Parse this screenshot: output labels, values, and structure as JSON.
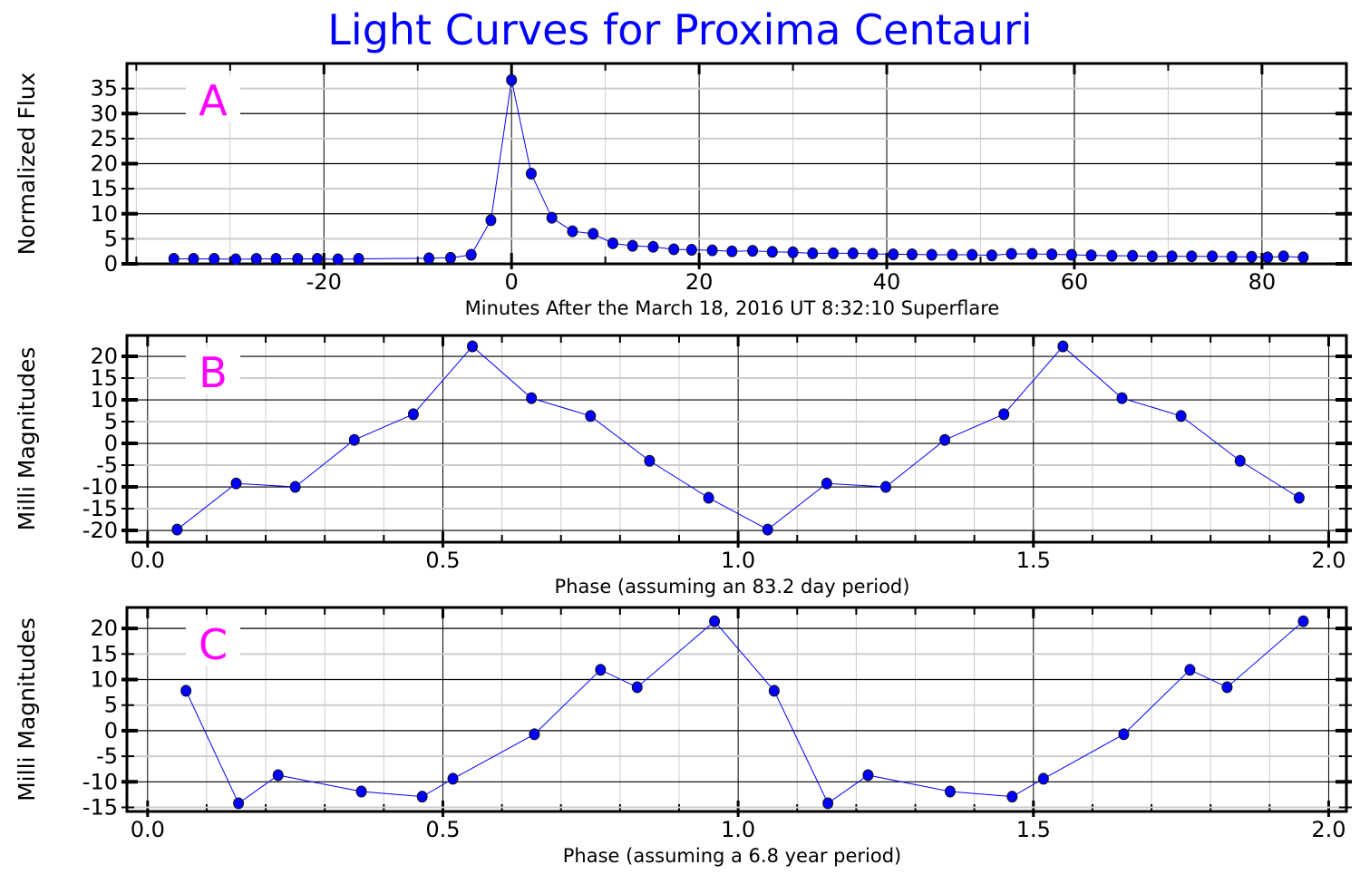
{
  "title": "Light Curves for Proxima Centauri",
  "colors": {
    "title": "#0000ff",
    "series": "#0000ff",
    "panel_label": "#ff00ff",
    "major_grid": "#000000",
    "minor_grid": "#cccccc"
  },
  "chart_data": [
    {
      "type": "line",
      "panel_label": "A",
      "xlabel": "Minutes After the March 18, 2016 UT 8:32:10 Superflare",
      "ylabel": "Normalized Flux",
      "xlim": [
        -41,
        89
      ],
      "ylim": [
        0,
        40
      ],
      "xticks": [
        -20,
        0,
        20,
        40,
        60,
        80
      ],
      "xminor": 10,
      "yticks": [
        0,
        5,
        10,
        15,
        20,
        25,
        30,
        35
      ],
      "ymajor": 10,
      "grid": true,
      "x": [
        -36.0,
        -33.9,
        -31.7,
        -29.4,
        -27.2,
        -25.1,
        -22.8,
        -20.7,
        -18.5,
        -16.3,
        -8.8,
        -6.5,
        -4.3,
        -2.2,
        0,
        2.1,
        4.3,
        6.5,
        8.7,
        10.8,
        12.9,
        15.1,
        17.3,
        19.2,
        21.4,
        23.5,
        25.7,
        27.8,
        30.0,
        32.1,
        34.3,
        36.4,
        38.5,
        40.7,
        42.7,
        44.8,
        47.0,
        49.1,
        51.2,
        53.3,
        55.5,
        57.6,
        59.7,
        61.8,
        64.0,
        66.2,
        68.3,
        70.4,
        72.5,
        74.7,
        76.8,
        78.9,
        80.6,
        82.3,
        84.4
      ],
      "y": [
        1.0,
        1.0,
        1.0,
        0.9,
        1.0,
        1.0,
        1.0,
        1.0,
        0.9,
        1.0,
        1.1,
        1.2,
        1.8,
        8.7,
        36.7,
        18.0,
        9.2,
        6.5,
        6.0,
        4.1,
        3.6,
        3.4,
        2.9,
        2.8,
        2.7,
        2.5,
        2.6,
        2.4,
        2.3,
        2.1,
        2.1,
        2.1,
        2.0,
        1.9,
        1.9,
        1.8,
        1.8,
        1.8,
        1.7,
        2.0,
        2.0,
        1.9,
        1.8,
        1.7,
        1.6,
        1.6,
        1.5,
        1.5,
        1.5,
        1.5,
        1.4,
        1.4,
        1.3,
        1.5,
        1.3
      ]
    },
    {
      "type": "line",
      "panel_label": "B",
      "xlabel": "Phase (assuming an 83.2 day period)",
      "ylabel": "Milli Magnitudes",
      "xlim": [
        -0.035,
        2.03
      ],
      "ylim": [
        -22.7,
        24.8
      ],
      "xticks": [
        0.0,
        0.5,
        1.0,
        1.5,
        2.0
      ],
      "xminor": 0.1,
      "yticks": [
        -20,
        -15,
        -10,
        -5,
        0,
        5,
        10,
        15,
        20
      ],
      "ymajor": 10,
      "grid": true,
      "x": [
        0.05,
        0.15,
        0.25,
        0.35,
        0.45,
        0.55,
        0.65,
        0.75,
        0.85,
        0.95,
        1.05,
        1.15,
        1.25,
        1.35,
        1.45,
        1.55,
        1.65,
        1.75,
        1.85,
        1.95
      ],
      "y": [
        -19.8,
        -9.2,
        -10.0,
        0.8,
        6.7,
        22.3,
        10.4,
        6.3,
        -4.0,
        -12.5,
        -19.8,
        -9.2,
        -10.0,
        0.8,
        6.7,
        22.3,
        10.4,
        6.3,
        -4.0,
        -12.5
      ]
    },
    {
      "type": "line",
      "panel_label": "C",
      "xlabel": "Phase (assuming a 6.8 year period)",
      "ylabel": "Milli Magnitudes",
      "xlim": [
        -0.035,
        2.03
      ],
      "ylim": [
        -15.8,
        24.1
      ],
      "xticks": [
        0.0,
        0.5,
        1.0,
        1.5,
        2.0
      ],
      "xminor": 0.1,
      "yticks": [
        -15,
        -10,
        -5,
        0,
        5,
        10,
        15,
        20
      ],
      "ymajor": 10,
      "grid": true,
      "x": [
        0.065,
        0.154,
        0.221,
        0.362,
        0.465,
        0.517,
        0.655,
        0.767,
        0.829,
        0.96,
        1.061,
        1.152,
        1.22,
        1.359,
        1.464,
        1.517,
        1.653,
        1.765,
        1.828,
        1.957
      ],
      "y": [
        7.8,
        -14.2,
        -8.7,
        -11.9,
        -12.9,
        -9.4,
        -0.7,
        11.9,
        8.5,
        21.4,
        7.8,
        -14.2,
        -8.7,
        -11.9,
        -12.9,
        -9.4,
        -0.7,
        11.9,
        8.5,
        21.4
      ]
    }
  ]
}
